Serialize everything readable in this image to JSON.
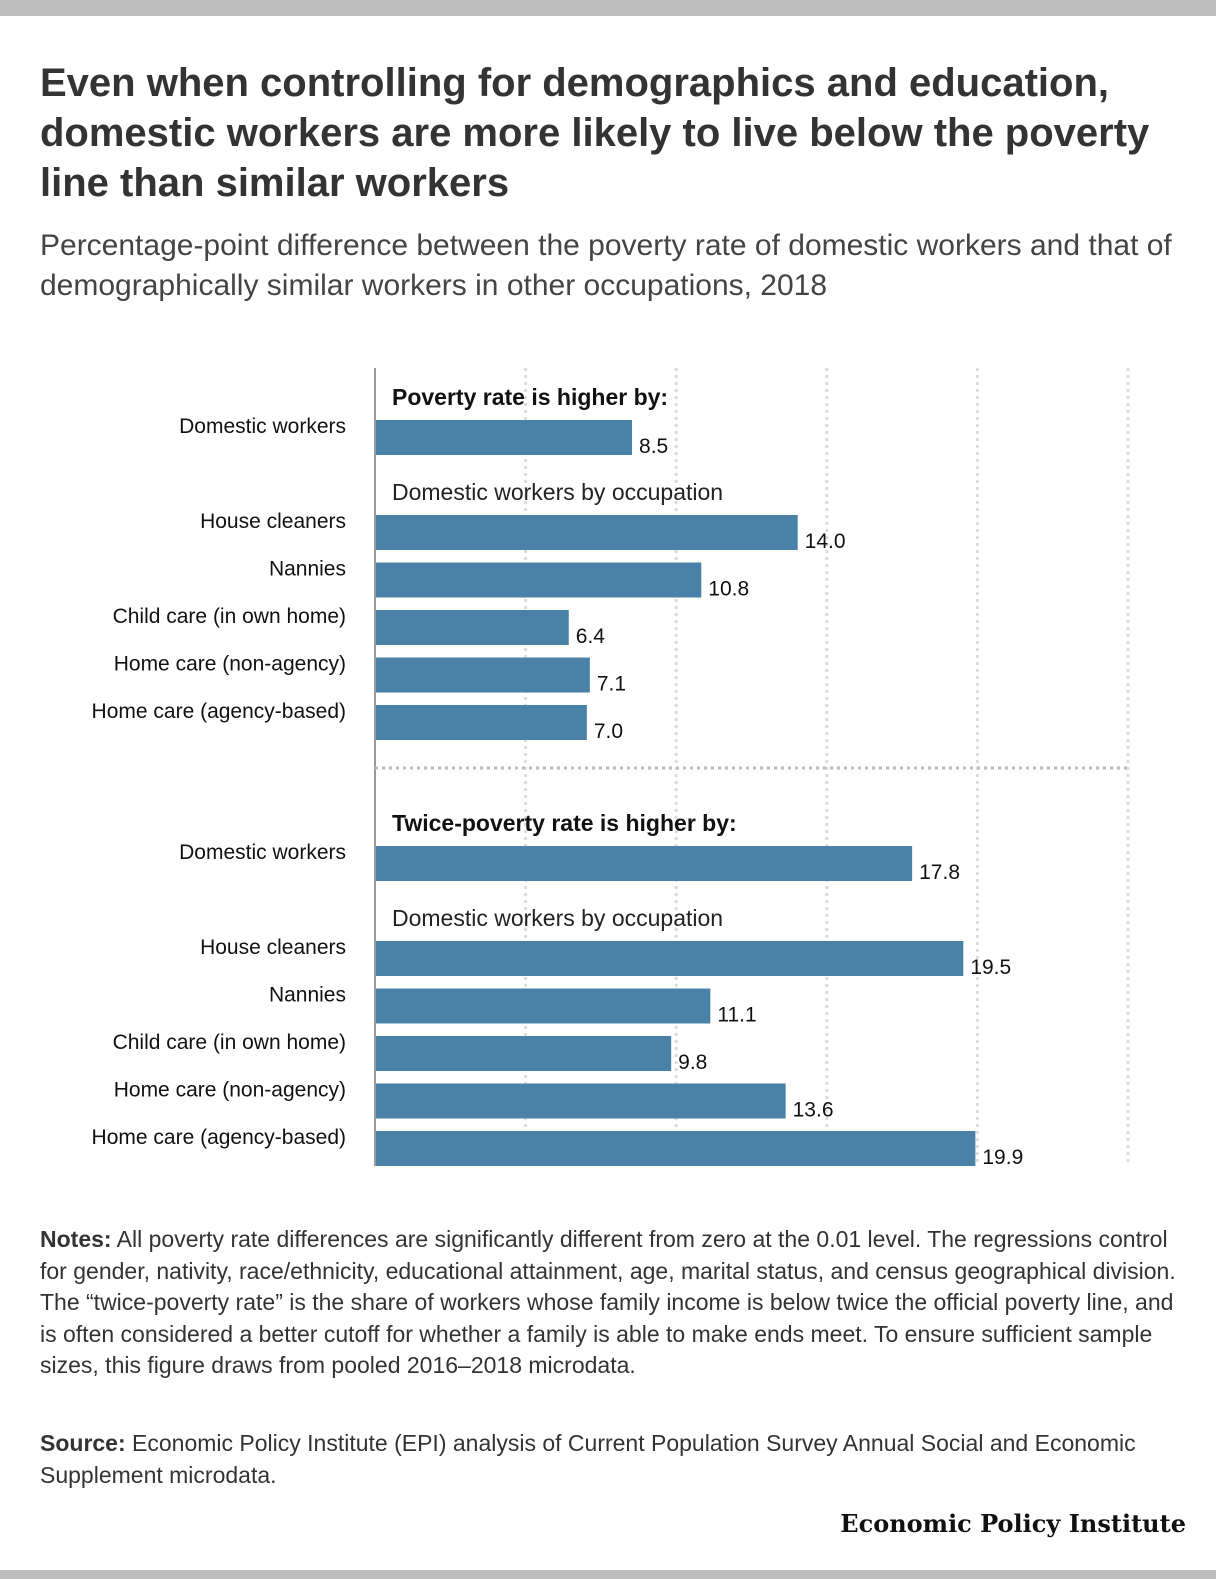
{
  "header": {
    "title": "Even when controlling for demographics and education, domestic workers are more likely to live below the poverty line than similar workers",
    "subtitle": "Percentage-point difference between the poverty rate of domestic workers and that of demographically similar workers in other occupations, 2018"
  },
  "chart_data": {
    "type": "bar",
    "orientation": "horizontal",
    "xlim": [
      0,
      25
    ],
    "grid": true,
    "bar_color": "#4a81a6",
    "panels": [
      {
        "heading": "Poverty rate is higher by:",
        "groups": [
          {
            "label": "",
            "categories": [
              "Domestic workers"
            ],
            "values": [
              8.5
            ]
          },
          {
            "label": "Domestic workers by occupation",
            "categories": [
              "House cleaners",
              "Nannies",
              "Child care (in own home)",
              "Home care (non-agency)",
              "Home care (agency-based)"
            ],
            "values": [
              14.0,
              10.8,
              6.4,
              7.1,
              7.0
            ]
          }
        ]
      },
      {
        "heading": "Twice-poverty rate is higher by:",
        "groups": [
          {
            "label": "",
            "categories": [
              "Domestic workers"
            ],
            "values": [
              17.8
            ]
          },
          {
            "label": "Domestic workers by occupation",
            "categories": [
              "House cleaners",
              "Nannies",
              "Child care (in own home)",
              "Home care (non-agency)",
              "Home care (agency-based)"
            ],
            "values": [
              19.5,
              11.1,
              9.8,
              13.6,
              19.9
            ]
          }
        ]
      }
    ]
  },
  "notes": {
    "label": "Notes:",
    "text": " All poverty rate differences are significantly different from zero at the 0.01 level. The regressions control for gender, nativity, race/ethnicity, educational attainment, age, marital status, and census geographical division. The “twice-poverty rate” is the share of workers whose family income is below twice the official poverty line, and is often considered a better cutoff for whether a family is able to make ends meet. To ensure sufficient sample sizes, this figure draws from pooled 2016–2018 microdata."
  },
  "source": {
    "label": "Source:",
    "text": " Economic Policy Institute (EPI) analysis of Current Population Survey Annual Social and Economic Supplement microdata."
  },
  "brand": "Economic Policy Institute"
}
